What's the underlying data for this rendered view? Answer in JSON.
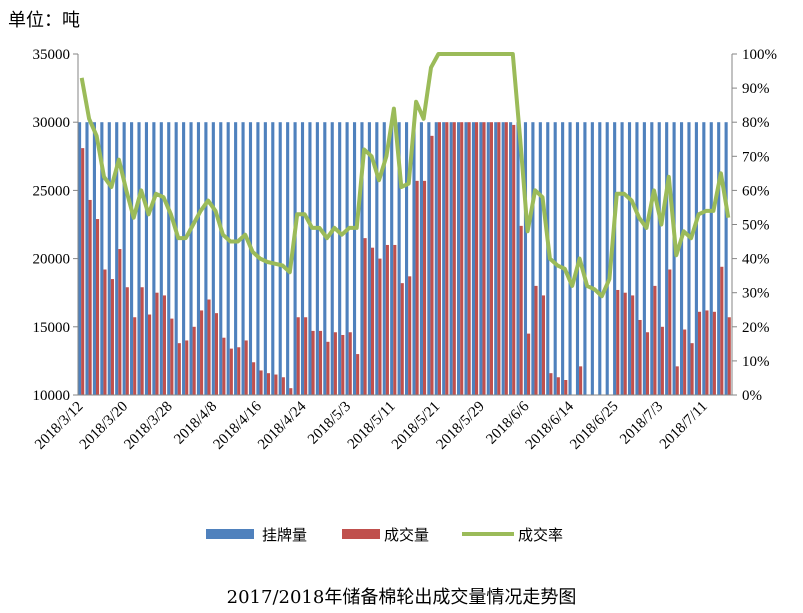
{
  "unit_label": "单位：吨",
  "caption": "2017/2018年储备棉轮出成交量情况走势图",
  "colors": {
    "listed": "#4F81BD",
    "traded": "#C0504D",
    "rate": "#9BBB59"
  },
  "chart_data": {
    "type": "bar",
    "title": "2017/2018年储备棉轮出成交量情况走势图",
    "ylim_left": [
      10000,
      35000
    ],
    "ylim_right": [
      0,
      100
    ],
    "y_ticks_left": [
      "10000",
      "15000",
      "20000",
      "25000",
      "30000",
      "35000"
    ],
    "y_ticks_right": [
      "0%",
      "10%",
      "20%",
      "30%",
      "40%",
      "50%",
      "60%",
      "70%",
      "80%",
      "90%",
      "100%"
    ],
    "x_tick_labels": [
      "2018/3/12",
      "2018/3/20",
      "2018/3/28",
      "2018/4/8",
      "2018/4/16",
      "2018/4/24",
      "2018/5/3",
      "2018/5/11",
      "2018/5/21",
      "2018/5/29",
      "2018/6/6",
      "2018/6/14",
      "2018/6/25",
      "2018/7/3",
      "2018/7/11"
    ],
    "x_tick_indices": [
      0,
      6,
      12,
      18,
      24,
      30,
      36,
      42,
      48,
      54,
      60,
      66,
      72,
      78,
      84
    ],
    "legend": [
      "挂牌量",
      "成交量",
      "成交率"
    ],
    "grid": false,
    "series": [
      {
        "name": "挂牌量",
        "type": "bar",
        "axis": "left",
        "values": [
          30000,
          30000,
          30000,
          30000,
          30000,
          30000,
          30000,
          30000,
          30000,
          30000,
          30000,
          30000,
          30000,
          30000,
          30000,
          30000,
          30000,
          30000,
          30000,
          30000,
          30000,
          30000,
          30000,
          30000,
          30000,
          30000,
          30000,
          30000,
          30000,
          30000,
          30000,
          30000,
          30000,
          30000,
          30000,
          30000,
          30000,
          30000,
          30000,
          30000,
          30000,
          30000,
          30000,
          30000,
          30000,
          30000,
          30000,
          30000,
          30000,
          30000,
          30000,
          30000,
          30000,
          30000,
          30000,
          30000,
          30000,
          30000,
          30000,
          30000,
          30000,
          30000,
          30000,
          30000,
          30000,
          30000,
          30000,
          30000,
          30000,
          30000,
          30000,
          30000,
          30000,
          30000,
          30000,
          30000,
          30000,
          30000,
          30000,
          30000,
          30000,
          30000,
          30000,
          30000,
          30000,
          30000,
          30000,
          30000
        ]
      },
      {
        "name": "成交量",
        "type": "bar",
        "axis": "left",
        "values": [
          28100,
          24300,
          22900,
          19200,
          18500,
          20700,
          17900,
          15700,
          17900,
          15900,
          17500,
          17300,
          15600,
          13800,
          14000,
          15000,
          16200,
          17000,
          16000,
          14200,
          13400,
          13500,
          14000,
          12400,
          11800,
          11600,
          11500,
          11300,
          10500,
          15700,
          15700,
          14700,
          14700,
          13900,
          14600,
          14400,
          14600,
          13000,
          21500,
          20800,
          20000,
          21000,
          21000,
          18200,
          18700,
          25700,
          25700,
          29000,
          30000,
          30000,
          30000,
          30000,
          30000,
          30000,
          30000,
          30000,
          30000,
          30000,
          29800,
          22400,
          14500,
          18000,
          17300,
          11600,
          11300,
          11100,
          10000,
          12100,
          10000,
          10000,
          10000,
          10000,
          17700,
          17500,
          17300,
          15500,
          14600,
          18000,
          15000,
          19200,
          12100,
          14800,
          13800,
          16100,
          16200,
          16100,
          19400,
          15700
        ]
      },
      {
        "name": "成交率",
        "type": "line",
        "axis": "right",
        "values": [
          93,
          81,
          76,
          64,
          61,
          69,
          60,
          52,
          60,
          53,
          59,
          58,
          53,
          46,
          46,
          50,
          54,
          57,
          54,
          47,
          45,
          45,
          47,
          42,
          40,
          39,
          38.5,
          38,
          36,
          53,
          53,
          49,
          49,
          46,
          49,
          47,
          49,
          49,
          72,
          70,
          63,
          70,
          84,
          61,
          62,
          86,
          81,
          96,
          100,
          100,
          100,
          100,
          100,
          100,
          100,
          100,
          100,
          100,
          100,
          75,
          48,
          60,
          58,
          40,
          38,
          37,
          32,
          40,
          32,
          31,
          29,
          34,
          59,
          59,
          57,
          52,
          49,
          60,
          50,
          64,
          41,
          48,
          46,
          53,
          54,
          54,
          65,
          52
        ]
      }
    ]
  }
}
